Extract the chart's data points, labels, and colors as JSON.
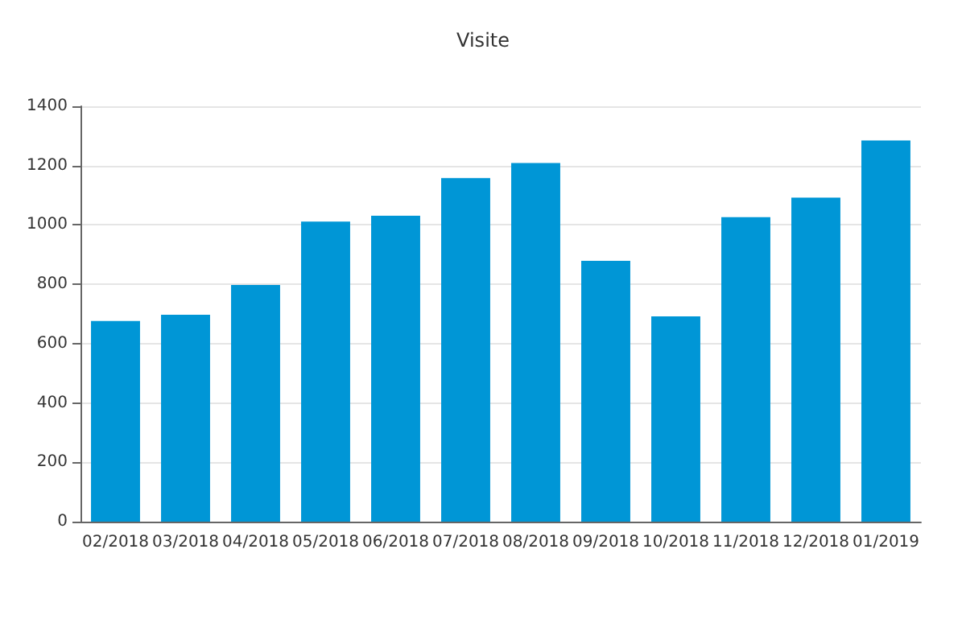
{
  "chart_data": {
    "type": "bar",
    "title": "Visite",
    "categories": [
      "02/2018",
      "03/2018",
      "04/2018",
      "05/2018",
      "06/2018",
      "07/2018",
      "08/2018",
      "09/2018",
      "10/2018",
      "11/2018",
      "12/2018",
      "01/2019"
    ],
    "values": [
      676,
      697,
      798,
      1011,
      1031,
      1158,
      1209,
      879,
      692,
      1026,
      1092,
      1285
    ],
    "color": "#0096d6",
    "ylim": [
      0,
      1400
    ],
    "yticks": [
      0,
      200,
      400,
      600,
      800,
      1000,
      1200,
      1400
    ],
    "grid": "y"
  }
}
